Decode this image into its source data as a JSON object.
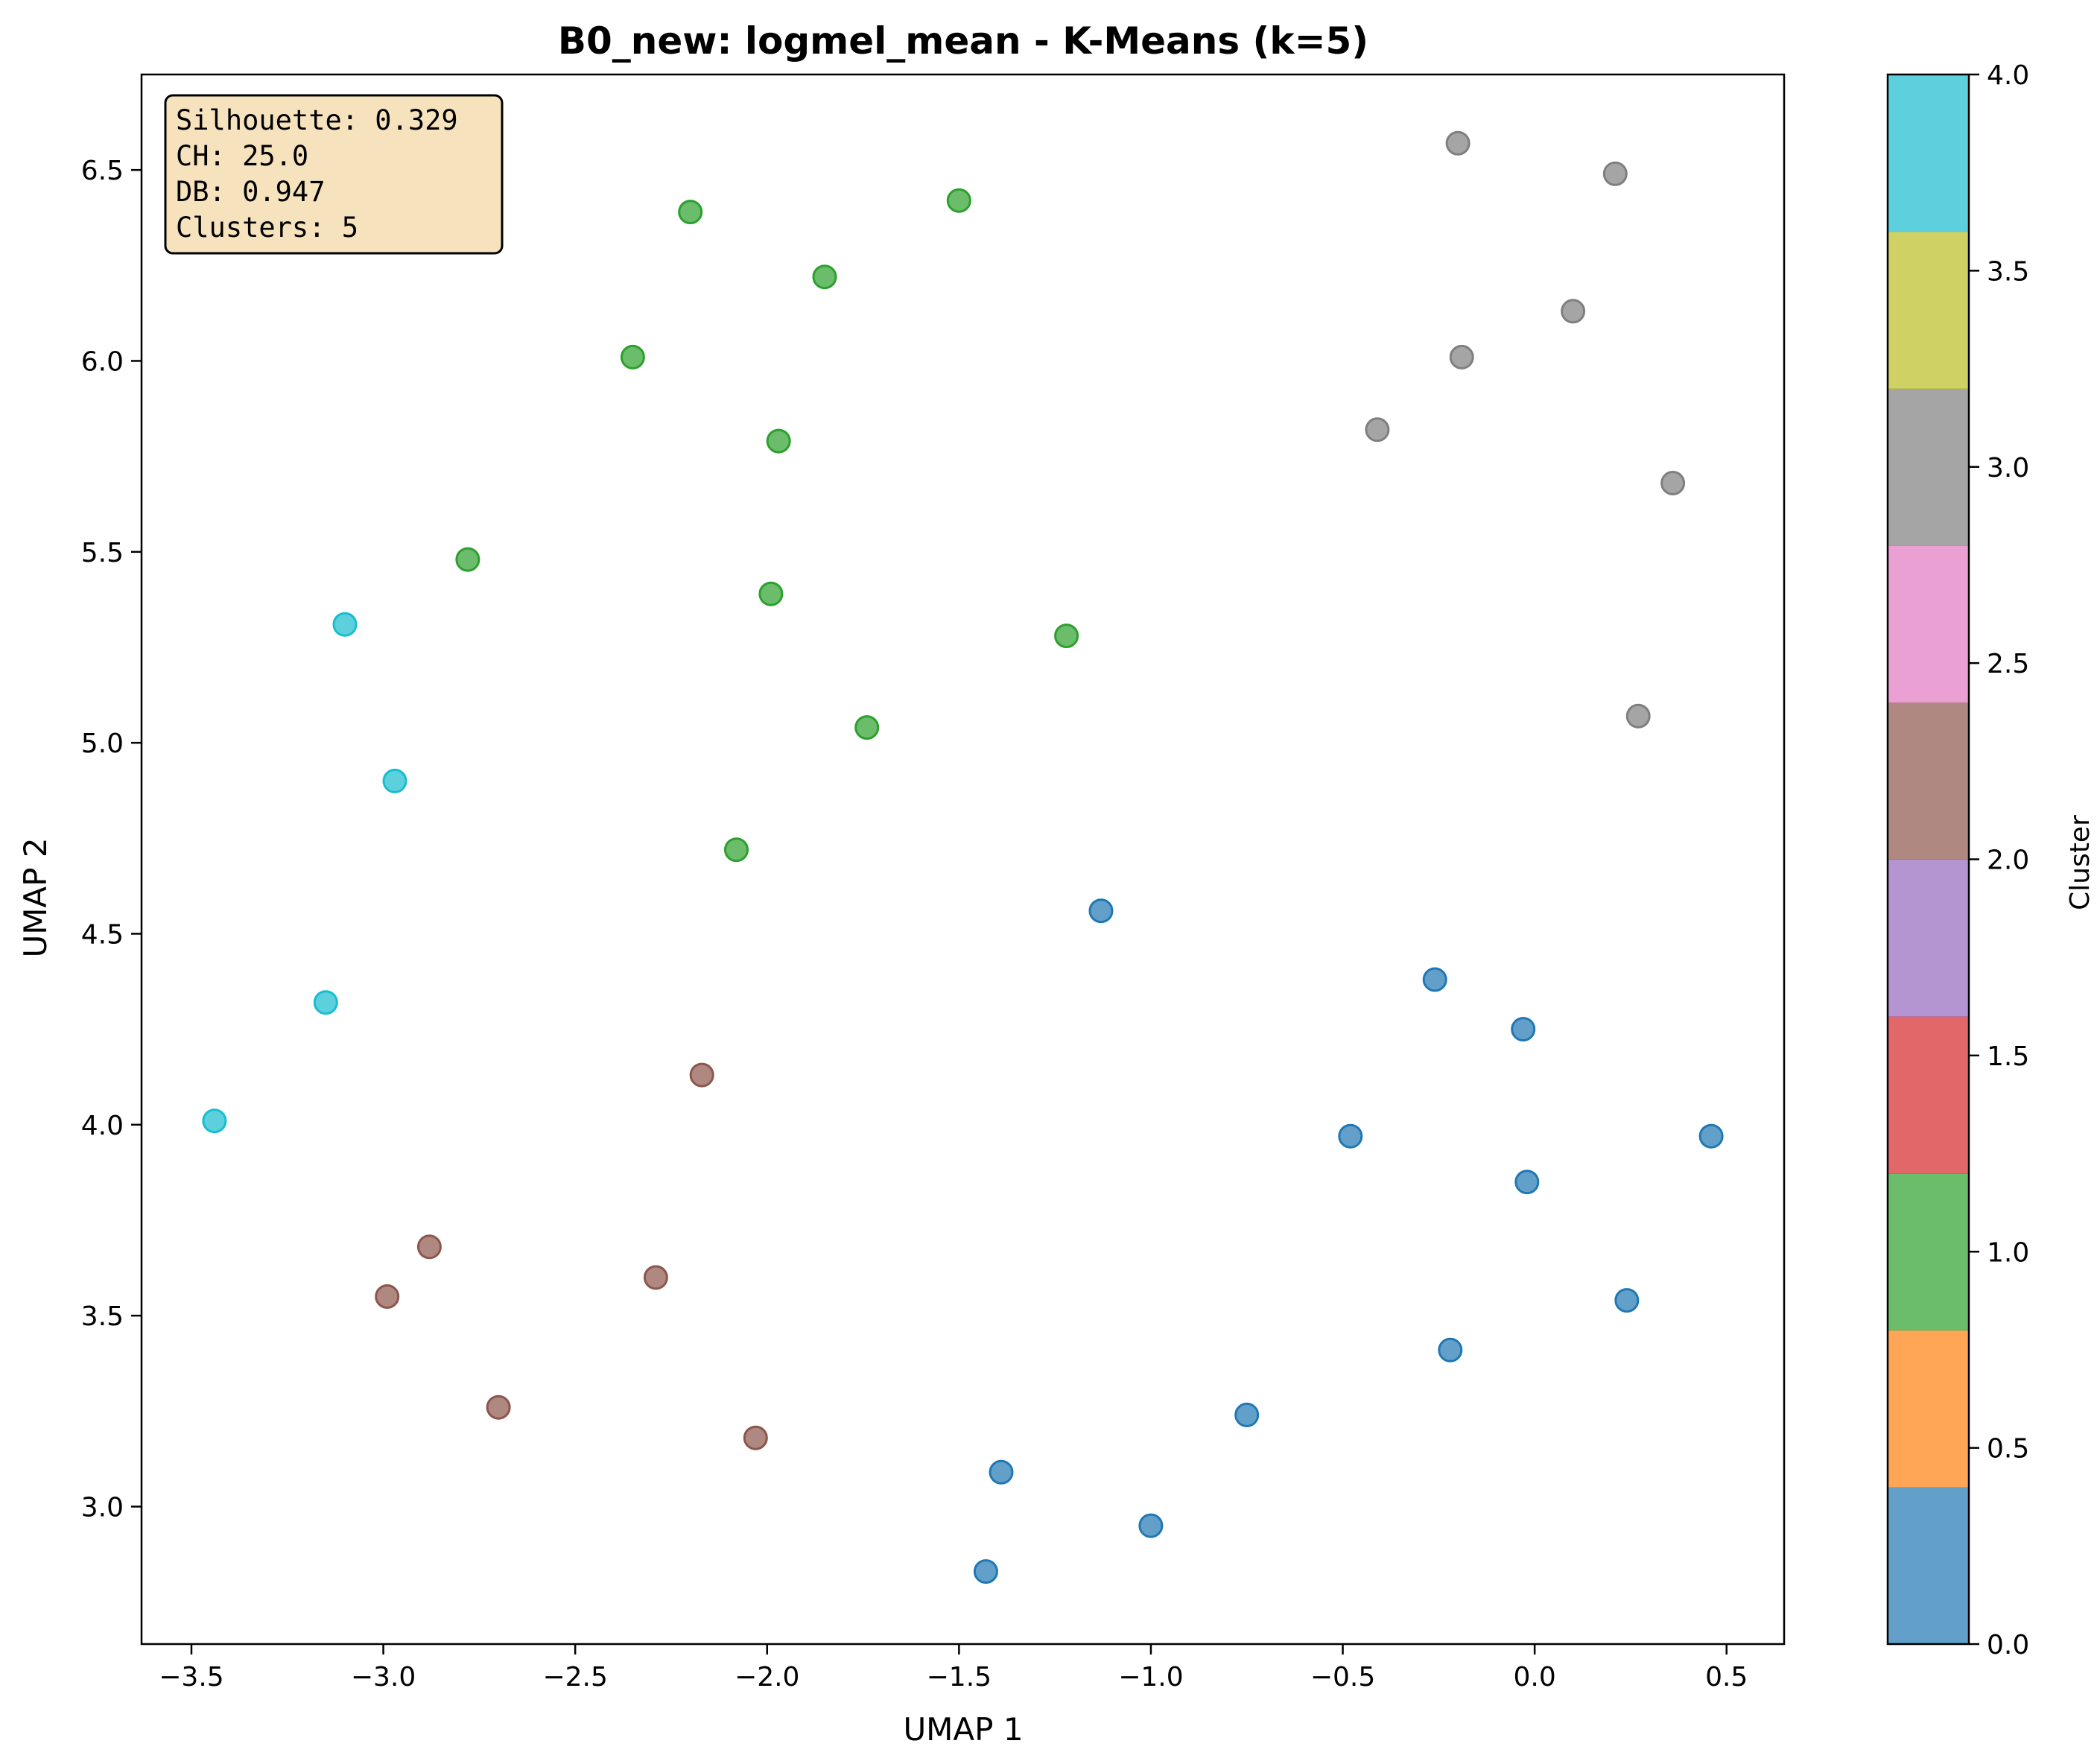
{
  "chart_data": {
    "type": "scatter",
    "title": "B0_new: logmel_mean - K-Means (k=5)",
    "xlabel": "UMAP 1",
    "ylabel": "UMAP 2",
    "xlim": [
      -3.63,
      0.65
    ],
    "ylim": [
      2.64,
      6.75
    ],
    "xticks": [
      -3.5,
      -3.0,
      -2.5,
      -2.0,
      -1.5,
      -1.0,
      -0.5,
      0.0,
      0.5
    ],
    "yticks": [
      3.0,
      3.5,
      4.0,
      4.5,
      5.0,
      5.5,
      6.0,
      6.5
    ],
    "grid": false,
    "stats": [
      "Silhouette: 0.329",
      "CH: 25.0",
      "DB: 0.947",
      "Clusters: 5"
    ],
    "colorbar": {
      "label": "Cluster",
      "min": 0.0,
      "max": 4.0,
      "ticks": [
        0.0,
        0.5,
        1.0,
        1.5,
        2.0,
        2.5,
        3.0,
        3.5,
        4.0
      ],
      "colors": [
        "#1f77b4",
        "#ff7f0e",
        "#2ca02c",
        "#d62728",
        "#9467bd",
        "#8c564b",
        "#e377c2",
        "#7f7f7f",
        "#bcbd22",
        "#17becf"
      ]
    },
    "cluster_colors": {
      "0": "#1f77b4",
      "1": "#2ca02c",
      "2": "#8c564b",
      "3": "#7f7f7f",
      "4": "#17becf"
    },
    "points": [
      {
        "x": -0.2,
        "y": 6.57,
        "cluster": 3
      },
      {
        "x": 0.21,
        "y": 6.49,
        "cluster": 3
      },
      {
        "x": 0.1,
        "y": 6.13,
        "cluster": 3
      },
      {
        "x": -0.19,
        "y": 6.01,
        "cluster": 3
      },
      {
        "x": -0.41,
        "y": 5.82,
        "cluster": 3
      },
      {
        "x": 0.36,
        "y": 5.68,
        "cluster": 3
      },
      {
        "x": 0.27,
        "y": 5.07,
        "cluster": 3
      },
      {
        "x": -1.5,
        "y": 6.42,
        "cluster": 1
      },
      {
        "x": -2.2,
        "y": 6.39,
        "cluster": 1
      },
      {
        "x": -1.85,
        "y": 6.22,
        "cluster": 1
      },
      {
        "x": -2.35,
        "y": 6.01,
        "cluster": 1
      },
      {
        "x": -1.97,
        "y": 5.79,
        "cluster": 1
      },
      {
        "x": -2.78,
        "y": 5.48,
        "cluster": 1
      },
      {
        "x": -1.99,
        "y": 5.39,
        "cluster": 1
      },
      {
        "x": -1.22,
        "y": 5.28,
        "cluster": 1
      },
      {
        "x": -1.74,
        "y": 5.04,
        "cluster": 1
      },
      {
        "x": -2.08,
        "y": 4.72,
        "cluster": 1
      },
      {
        "x": -3.1,
        "y": 5.31,
        "cluster": 4
      },
      {
        "x": -2.97,
        "y": 4.9,
        "cluster": 4
      },
      {
        "x": -3.15,
        "y": 4.32,
        "cluster": 4
      },
      {
        "x": -3.44,
        "y": 4.01,
        "cluster": 4
      },
      {
        "x": -2.17,
        "y": 4.13,
        "cluster": 2
      },
      {
        "x": -2.88,
        "y": 3.68,
        "cluster": 2
      },
      {
        "x": -2.99,
        "y": 3.55,
        "cluster": 2
      },
      {
        "x": -2.29,
        "y": 3.6,
        "cluster": 2
      },
      {
        "x": -2.7,
        "y": 3.26,
        "cluster": 2
      },
      {
        "x": -2.03,
        "y": 3.18,
        "cluster": 2
      },
      {
        "x": -1.13,
        "y": 4.56,
        "cluster": 0
      },
      {
        "x": -0.26,
        "y": 4.38,
        "cluster": 0
      },
      {
        "x": -0.03,
        "y": 4.25,
        "cluster": 0
      },
      {
        "x": -0.48,
        "y": 3.97,
        "cluster": 0
      },
      {
        "x": 0.46,
        "y": 3.97,
        "cluster": 0
      },
      {
        "x": -0.02,
        "y": 3.85,
        "cluster": 0
      },
      {
        "x": 0.24,
        "y": 3.54,
        "cluster": 0
      },
      {
        "x": -0.22,
        "y": 3.41,
        "cluster": 0
      },
      {
        "x": -0.75,
        "y": 3.24,
        "cluster": 0
      },
      {
        "x": -1.39,
        "y": 3.09,
        "cluster": 0
      },
      {
        "x": -1.0,
        "y": 2.95,
        "cluster": 0
      },
      {
        "x": -1.43,
        "y": 2.83,
        "cluster": 0
      }
    ]
  }
}
